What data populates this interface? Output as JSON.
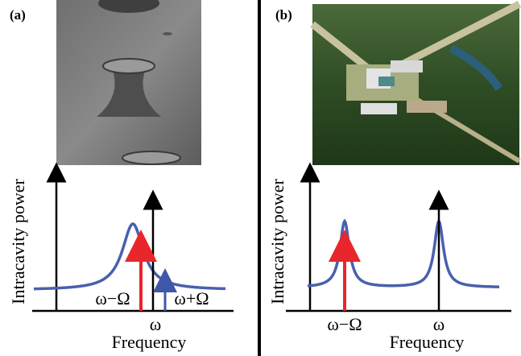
{
  "panels": [
    {
      "label": "(a)",
      "y_axis_label": "Intracavity power",
      "x_axis_label": "Frequency",
      "annotations": [
        "ω−Ω",
        "ω",
        "ω+Ω"
      ]
    },
    {
      "label": "(b)",
      "y_axis_label": "Intracavity power",
      "x_axis_label": "Frequency",
      "annotations": [
        "ω−Ω",
        "ω"
      ]
    }
  ]
}
